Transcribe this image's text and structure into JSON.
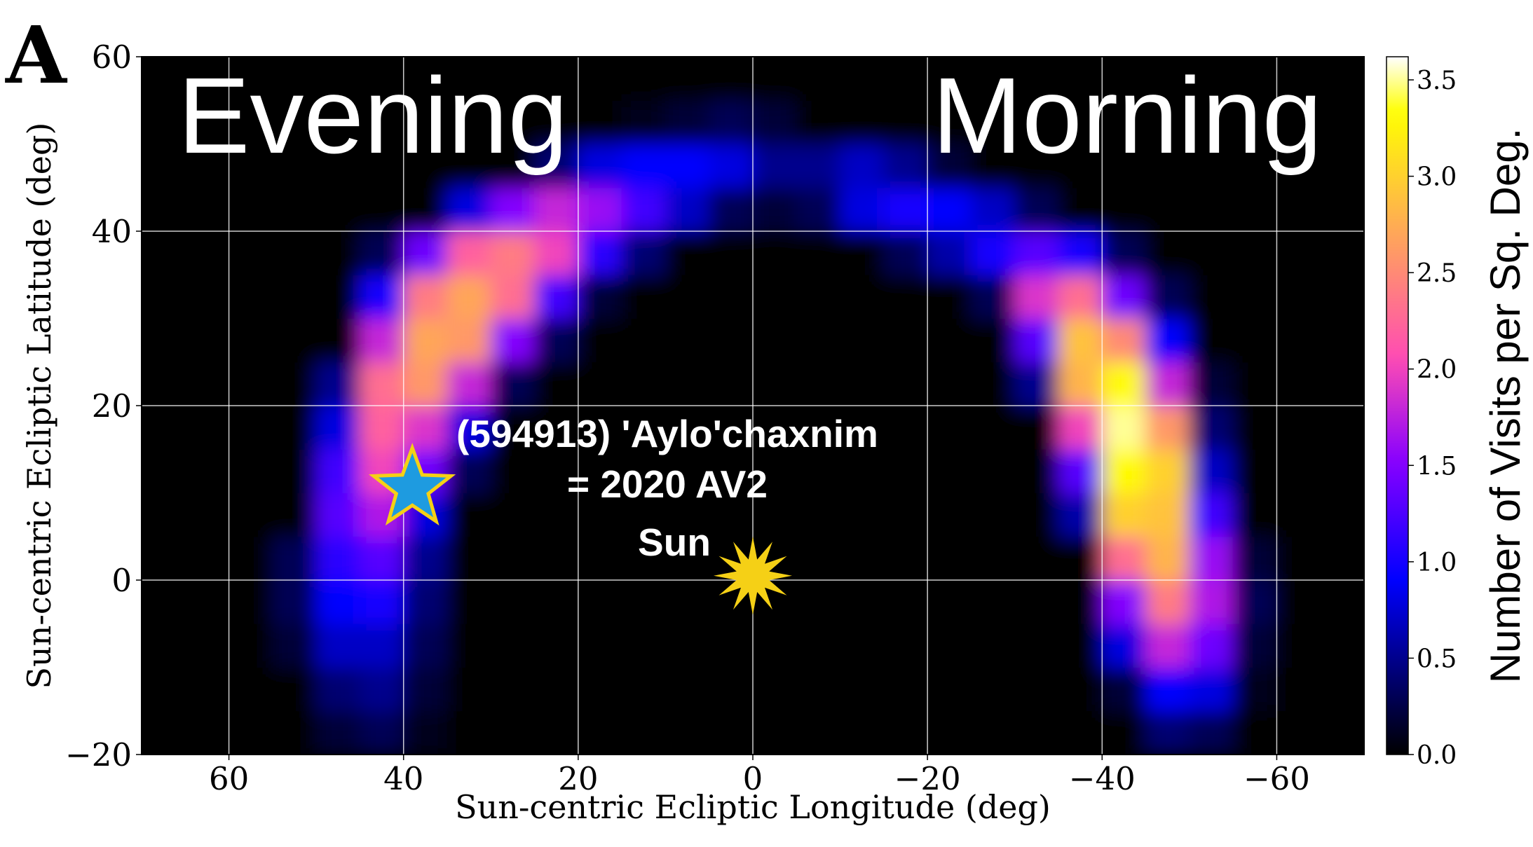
{
  "chart_data": {
    "type": "heatmap",
    "panel_label": "A",
    "xlabel": "Sun-centric Ecliptic Longitude (deg)",
    "ylabel": "Sun-centric Ecliptic Latitude (deg)",
    "colorbar_label": "Number of Visits per Sq. Deg.",
    "colormap": "gnuplot2",
    "grid": true,
    "xlim": [
      70,
      -70
    ],
    "ylim": [
      -20,
      60
    ],
    "xticks": [
      60,
      40,
      20,
      0,
      {
        "value": -20,
        "label": "−20"
      },
      {
        "value": -40,
        "label": "−40"
      },
      {
        "value": -60,
        "label": "−60"
      }
    ],
    "yticks": [
      {
        "value": -20,
        "label": "−20"
      },
      0,
      20,
      40,
      60
    ],
    "clim": [
      0,
      3.62
    ],
    "cticks": [
      {
        "value": 0,
        "label": "0.0"
      },
      {
        "value": 0.5,
        "label": "0.5"
      },
      {
        "value": 1,
        "label": "1.0"
      },
      {
        "value": 1.5,
        "label": "1.5"
      },
      {
        "value": 2,
        "label": "2.0"
      },
      {
        "value": 2.5,
        "label": "2.5"
      },
      {
        "value": 3,
        "label": "3.0"
      },
      {
        "value": 3.5,
        "label": "3.5"
      }
    ],
    "x_bins": [
      70,
      65,
      60,
      55,
      50,
      45,
      40,
      35,
      30,
      25,
      20,
      15,
      10,
      5,
      0,
      -5,
      -10,
      -15,
      -20,
      -25,
      -30,
      -35,
      -40,
      -45,
      -50,
      -55,
      -60,
      -65,
      -70
    ],
    "y_bins": [
      -20,
      -15,
      -10,
      -5,
      0,
      5,
      10,
      15,
      20,
      25,
      30,
      35,
      40,
      45,
      50,
      55,
      60
    ],
    "z": [
      [
        0,
        0,
        0,
        0,
        0.2,
        0.3,
        0.1,
        0,
        0,
        0,
        0,
        0,
        0,
        0,
        0,
        0,
        0,
        0,
        0,
        0,
        0,
        0,
        0,
        0.4,
        0.3,
        0,
        0,
        0
      ],
      [
        0,
        0,
        0,
        0,
        0.4,
        0.5,
        0.2,
        0,
        0,
        0,
        0,
        0,
        0,
        0,
        0,
        0,
        0,
        0,
        0,
        0,
        0,
        0,
        0.2,
        0.9,
        0.8,
        0.1,
        0,
        0
      ],
      [
        0,
        0,
        0,
        0.2,
        0.7,
        0.7,
        0.3,
        0,
        0,
        0,
        0,
        0,
        0,
        0,
        0,
        0,
        0,
        0,
        0,
        0,
        0,
        0,
        0.8,
        1.8,
        1.4,
        0.2,
        0,
        0
      ],
      [
        0,
        0,
        0,
        0.3,
        0.9,
        1.0,
        0.4,
        0,
        0,
        0,
        0,
        0,
        0,
        0,
        0,
        0,
        0,
        0,
        0,
        0,
        0,
        0,
        1.5,
        2.4,
        1.7,
        0.3,
        0,
        0
      ],
      [
        0,
        0,
        0,
        0.3,
        1.1,
        1.3,
        0.5,
        0,
        0,
        0,
        0,
        0,
        0,
        0,
        0,
        0,
        0,
        0,
        0,
        0,
        0,
        0,
        2.3,
        2.8,
        1.6,
        0.2,
        0,
        0
      ],
      [
        0,
        0,
        0,
        0,
        1.3,
        1.7,
        0.8,
        0,
        0,
        0,
        0,
        0,
        0,
        0,
        0,
        0,
        0,
        0,
        0,
        0,
        0,
        0.6,
        3.0,
        2.9,
        1.2,
        0,
        0,
        0
      ],
      [
        0,
        0,
        0,
        0,
        1.2,
        2.0,
        1.4,
        0.3,
        0,
        0,
        0,
        0,
        0,
        0,
        0,
        0,
        0,
        0,
        0,
        0,
        0,
        1.3,
        3.3,
        3.0,
        0.7,
        0,
        0,
        0
      ],
      [
        0,
        0,
        0,
        0,
        0.8,
        2.2,
        1.9,
        0.8,
        0,
        0,
        0,
        0,
        0,
        0,
        0,
        0,
        0,
        0,
        0,
        0,
        0,
        2.0,
        3.5,
        2.6,
        0.4,
        0,
        0,
        0
      ],
      [
        0,
        0,
        0,
        0,
        0.5,
        2.3,
        2.6,
        1.8,
        0.3,
        0,
        0,
        0,
        0,
        0,
        0,
        0,
        0,
        0,
        0,
        0,
        0.5,
        2.8,
        3.3,
        1.8,
        0.2,
        0,
        0,
        0
      ],
      [
        0,
        0,
        0,
        0,
        0,
        1.8,
        2.7,
        2.6,
        1.5,
        0.3,
        0,
        0,
        0,
        0,
        0,
        0,
        0,
        0,
        0,
        0,
        1.3,
        2.9,
        2.5,
        0.9,
        0,
        0,
        0,
        0
      ],
      [
        0,
        0,
        0,
        0,
        0,
        1.0,
        2.4,
        2.7,
        2.3,
        1.2,
        0.2,
        0,
        0,
        0,
        0,
        0,
        0,
        0,
        0,
        0.3,
        1.9,
        2.3,
        1.4,
        0.3,
        0,
        0,
        0,
        0
      ],
      [
        0,
        0,
        0,
        0,
        0,
        0.3,
        1.4,
        2.2,
        2.4,
        2.0,
        1.1,
        0.4,
        0,
        0,
        0,
        0,
        0,
        0.3,
        0.6,
        1.0,
        1.3,
        1.0,
        0.3,
        0,
        0,
        0,
        0,
        0
      ],
      [
        0,
        0,
        0,
        0,
        0,
        0,
        0,
        0.8,
        1.5,
        1.8,
        1.6,
        1.2,
        0.7,
        0.3,
        0.2,
        0.3,
        0.8,
        1.0,
        0.9,
        0.7,
        0.3,
        0,
        0,
        0,
        0,
        0,
        0,
        0
      ],
      [
        0,
        0,
        0,
        0,
        0,
        0,
        0,
        0,
        0,
        0.4,
        0.8,
        0.9,
        0.9,
        0.8,
        0.5,
        0.5,
        0.7,
        0.5,
        0.2,
        0,
        0,
        0,
        0,
        0,
        0,
        0,
        0,
        0
      ],
      [
        0,
        0,
        0,
        0,
        0,
        0,
        0,
        0,
        0,
        0,
        0,
        0.1,
        0.2,
        0.3,
        0.2,
        0,
        0,
        0,
        0,
        0,
        0,
        0,
        0,
        0,
        0,
        0,
        0,
        0
      ],
      [
        0,
        0,
        0,
        0,
        0,
        0,
        0,
        0,
        0,
        0,
        0,
        0,
        0,
        0,
        0,
        0,
        0,
        0,
        0,
        0,
        0,
        0,
        0,
        0,
        0,
        0,
        0,
        0
      ]
    ],
    "annotations": [
      "Evening",
      "Morning",
      "(594913) 'Aylo'chaxnim",
      "= 2020 AV2"
    ],
    "markers": [
      {
        "name": "Sun",
        "x": 0,
        "y": 0.5,
        "color": "#f5d016"
      },
      {
        "x": 39,
        "y": 10.5,
        "color": "#1e9be0"
      }
    ]
  }
}
